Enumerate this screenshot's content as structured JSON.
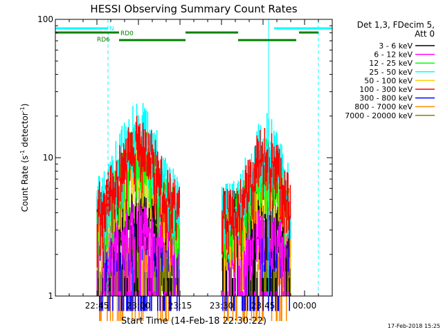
{
  "chart_data": {
    "type": "line",
    "title": "HESSI Observing Summary Count Rates",
    "xlabel": "Start Time (14-Feb-18 22:30:22)",
    "ylabel_main": "Count Rate (s",
    "ylabel_sup": "-1",
    "ylabel_mid": " detector",
    "ylabel_sup2": "-1",
    "ylabel_end": ")",
    "yscale": "log",
    "ylim": [
      1,
      100
    ],
    "xlim_minutes": [
      0,
      100
    ],
    "x_ticks": [
      {
        "label": "22:45",
        "minute": 15
      },
      {
        "label": "23:00",
        "minute": 30
      },
      {
        "label": "23:15",
        "minute": 45
      },
      {
        "label": "23:30",
        "minute": 60
      },
      {
        "label": "23:45",
        "minute": 75
      },
      {
        "label": "00:00",
        "minute": 90
      }
    ],
    "y_ticks": [
      {
        "label": "1",
        "value": 1
      },
      {
        "label": "10",
        "value": 10
      },
      {
        "label": "100",
        "value": 100
      }
    ],
    "legend_position": "right",
    "legend_header": [
      "Det 1,3, FDecim 5,",
      "Att 0"
    ],
    "series": [
      {
        "name": "3 - 6 keV",
        "color": "#000000",
        "profile": "flat",
        "base": 4.5
      },
      {
        "name": "6 - 12 keV",
        "color": "#ff00ff",
        "profile": "flat",
        "base": 3.6
      },
      {
        "name": "12 - 25 keV",
        "color": "#00ff00",
        "profile": "orbit",
        "peak": 13.0,
        "base": 4.0
      },
      {
        "name": "25 - 50 keV",
        "color": "#00ffff",
        "profile": "orbit",
        "peak": 19.0,
        "base": 5.0
      },
      {
        "name": "50 - 100 keV",
        "color": "#ffcc00",
        "profile": "orbit",
        "peak": 11.0,
        "base": 3.5
      },
      {
        "name": "100 - 300 keV",
        "color": "#ff0000",
        "profile": "orbit",
        "peak": 15.0,
        "base": 4.5
      },
      {
        "name": "300 - 800 keV",
        "color": "#0000ff",
        "profile": "flat",
        "base": 2.6
      },
      {
        "name": "800 - 7000 keV",
        "color": "#ff8c00",
        "profile": "flat",
        "base": 2.2
      },
      {
        "name": "7000 - 20000 keV",
        "color": "#808000",
        "profile": "flat",
        "base": 5.0
      }
    ],
    "data_intervals_minutes": [
      [
        15,
        45
      ],
      [
        60,
        85
      ]
    ],
    "orbit_peaks_minutes": [
      30,
      76
    ],
    "annotations": {
      "N": {
        "label": "N",
        "color": "#00ffff",
        "segments": [
          [
            0,
            19
          ],
          [
            79,
            100
          ]
        ]
      },
      "RD0": {
        "label": "RD0",
        "color": "#008000",
        "segments": [
          [
            0,
            23
          ],
          [
            47,
            66
          ],
          [
            88,
            95
          ]
        ]
      },
      "RD6": {
        "label": "RD6",
        "color": "#008000",
        "segments": [
          [
            23,
            47
          ],
          [
            66,
            87
          ]
        ]
      }
    },
    "vlines_solid_minutes": [
      0,
      77
    ],
    "vlines_dashed_minutes": [
      19,
      95
    ],
    "footer_timestamp": "17-Feb-2018 15:25"
  }
}
